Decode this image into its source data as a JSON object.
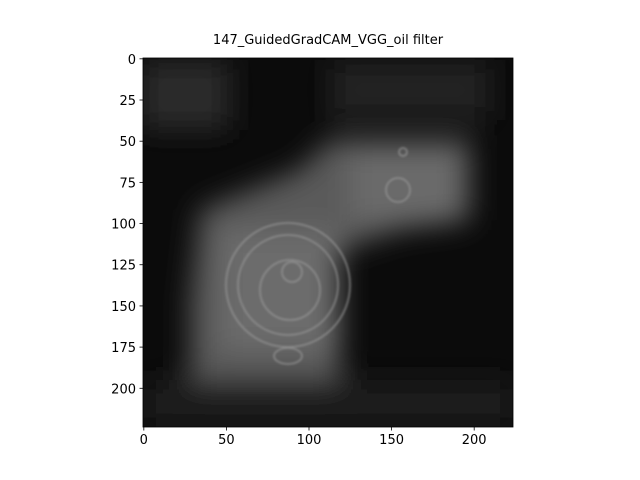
{
  "chart_data": {
    "type": "image",
    "title": "147_GuidedGradCAM_VGG_oil filter",
    "xlim": [
      -0.5,
      223.5
    ],
    "ylim": [
      223.5,
      -0.5
    ],
    "xticks": [
      0,
      50,
      100,
      150,
      200
    ],
    "yticks": [
      0,
      25,
      50,
      75,
      100,
      125,
      150,
      175,
      200
    ]
  }
}
